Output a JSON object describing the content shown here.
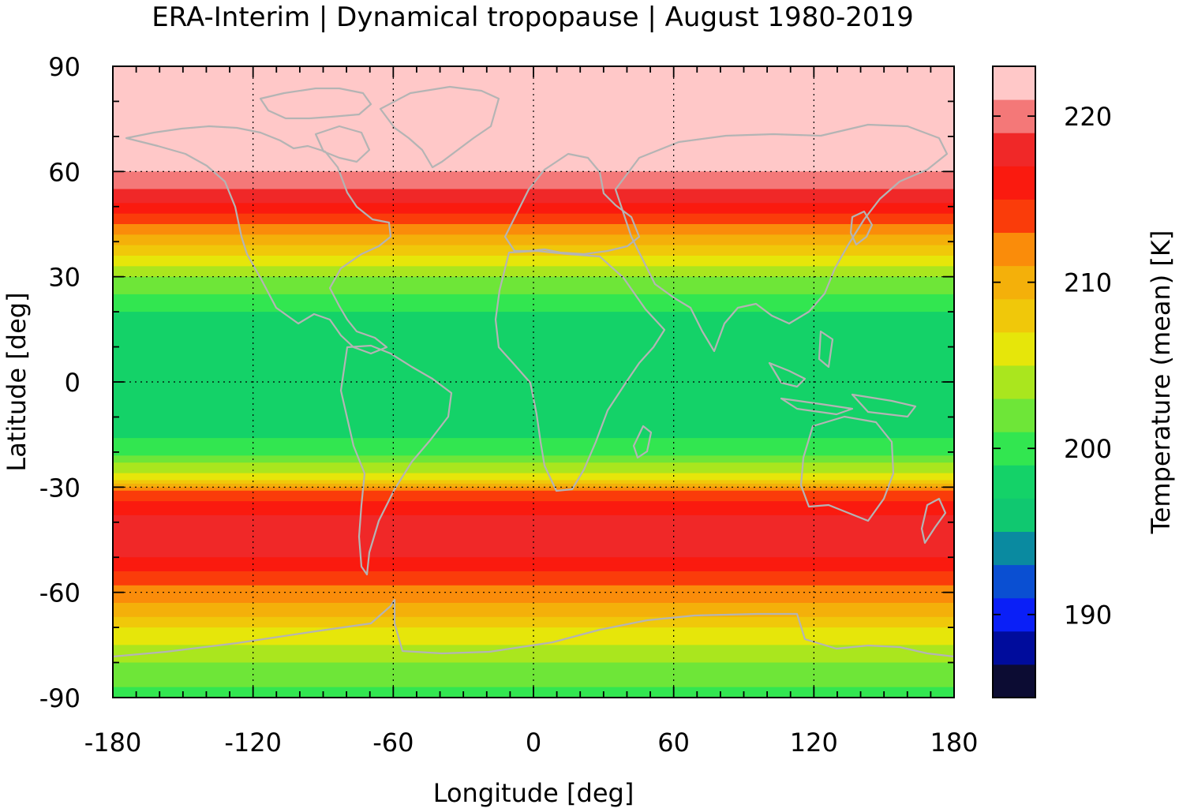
{
  "title": "ERA-Interim | Dynamical tropopause | August 1980-2019",
  "map": {
    "x_axis": {
      "label": "Longitude [deg]",
      "range": [
        -180,
        180
      ],
      "ticks": [
        "-180",
        "-120",
        "-60",
        "0",
        "60",
        "120",
        "180"
      ]
    },
    "y_axis": {
      "label": "Latitude [deg]",
      "range": [
        -90,
        90
      ],
      "ticks": [
        "90",
        "60",
        "30",
        "0",
        "-30",
        "-60",
        "-90"
      ]
    },
    "grid": true,
    "coastline_color": "#b4b4b4",
    "field": "mean tropopause temperature (K)",
    "zonal_profile": [
      {
        "lat": 90,
        "temp": 223
      },
      {
        "lat": 75,
        "temp": 222.5
      },
      {
        "lat": 60,
        "temp": 221
      },
      {
        "lat": 52,
        "temp": 218
      },
      {
        "lat": 45,
        "temp": 213
      },
      {
        "lat": 38,
        "temp": 208
      },
      {
        "lat": 30,
        "temp": 203
      },
      {
        "lat": 20,
        "temp": 199
      },
      {
        "lat": 10,
        "temp": 197
      },
      {
        "lat": 0,
        "temp": 197
      },
      {
        "lat": -10,
        "temp": 197.5
      },
      {
        "lat": -20,
        "temp": 200
      },
      {
        "lat": -27,
        "temp": 206
      },
      {
        "lat": -32,
        "temp": 214
      },
      {
        "lat": -40,
        "temp": 218
      },
      {
        "lat": -50,
        "temp": 217
      },
      {
        "lat": -58,
        "temp": 213
      },
      {
        "lat": -65,
        "temp": 210
      },
      {
        "lat": -72,
        "temp": 206
      },
      {
        "lat": -80,
        "temp": 203
      },
      {
        "lat": -90,
        "temp": 200
      }
    ]
  },
  "colorbar": {
    "label": "Temperature (mean) [K]",
    "range": [
      185,
      223
    ],
    "tick_labels": [
      "220",
      "210",
      "200",
      "190"
    ],
    "tick_values": [
      220,
      210,
      200,
      190
    ],
    "levels": [
      {
        "min": 185,
        "max": 187,
        "color": "#0c0c33"
      },
      {
        "min": 187,
        "max": 189,
        "color": "#000c9c"
      },
      {
        "min": 189,
        "max": 191,
        "color": "#0a1ff7"
      },
      {
        "min": 191,
        "max": 193,
        "color": "#0a4fd2"
      },
      {
        "min": 193,
        "max": 195,
        "color": "#0a8aa0"
      },
      {
        "min": 195,
        "max": 197,
        "color": "#10c870"
      },
      {
        "min": 197,
        "max": 199,
        "color": "#14d268"
      },
      {
        "min": 199,
        "max": 201,
        "color": "#32e650"
      },
      {
        "min": 201,
        "max": 203,
        "color": "#6ee638"
      },
      {
        "min": 203,
        "max": 205,
        "color": "#aae61e"
      },
      {
        "min": 205,
        "max": 207,
        "color": "#e6e60a"
      },
      {
        "min": 207,
        "max": 209,
        "color": "#f0c80a"
      },
      {
        "min": 209,
        "max": 211,
        "color": "#f4b00a"
      },
      {
        "min": 211,
        "max": 213,
        "color": "#fa8c0a"
      },
      {
        "min": 213,
        "max": 215,
        "color": "#fa3c0a"
      },
      {
        "min": 215,
        "max": 217,
        "color": "#fa1a0f"
      },
      {
        "min": 217,
        "max": 219,
        "color": "#f02828"
      },
      {
        "min": 219,
        "max": 221,
        "color": "#f47878"
      },
      {
        "min": 221,
        "max": 223,
        "color": "#ffc8c8"
      }
    ]
  }
}
